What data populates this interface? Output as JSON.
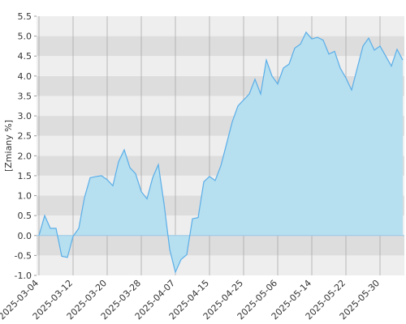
{
  "chart_data": {
    "type": "area",
    "y_label": "[Zmiany %]",
    "categories": [
      "2025-03-04",
      null,
      null,
      null,
      null,
      null,
      "2025-03-12",
      null,
      null,
      null,
      null,
      null,
      "2025-03-20",
      null,
      null,
      null,
      null,
      null,
      "2025-03-28",
      null,
      null,
      null,
      null,
      null,
      "2025-04-07",
      null,
      null,
      null,
      null,
      null,
      "2025-04-15",
      null,
      null,
      null,
      null,
      null,
      "2025-04-25",
      null,
      null,
      null,
      null,
      null,
      "2025-05-06",
      null,
      null,
      null,
      null,
      null,
      "2025-05-14",
      null,
      null,
      null,
      null,
      null,
      "2025-05-22",
      null,
      null,
      null,
      null,
      null,
      "2025-05-30",
      null,
      null,
      null,
      null
    ],
    "values": [
      0.0,
      0.5,
      0.18,
      0.18,
      -0.52,
      -0.55,
      -0.02,
      0.18,
      0.95,
      1.45,
      1.48,
      1.5,
      1.4,
      1.25,
      1.85,
      2.15,
      1.7,
      1.55,
      1.1,
      0.92,
      1.45,
      1.78,
      0.8,
      -0.35,
      -0.92,
      -0.6,
      -0.48,
      0.42,
      0.45,
      1.35,
      1.48,
      1.38,
      1.75,
      2.3,
      2.85,
      3.25,
      3.4,
      3.55,
      3.92,
      3.55,
      4.4,
      4.0,
      3.8,
      4.2,
      4.3,
      4.7,
      4.8,
      5.1,
      4.93,
      4.97,
      4.9,
      4.55,
      4.62,
      4.2,
      3.95,
      3.65,
      4.2,
      4.75,
      4.95,
      4.65,
      4.75,
      4.5,
      4.25,
      4.67,
      4.4
    ],
    "color": "#5aaee8",
    "fill": "#b6dff0",
    "ylim": [
      -1.0,
      5.5
    ],
    "yticks": [
      {
        "value": -1,
        "label": "-1.0"
      },
      -0.5,
      {
        "value": 0,
        "label": "0.0"
      },
      0.5,
      {
        "value": 1,
        "label": "1.0"
      },
      1.5,
      {
        "value": 2,
        "label": "2.0"
      },
      2.5,
      {
        "value": 3,
        "label": "3.0"
      },
      3.5,
      {
        "value": 4,
        "label": "4.0"
      },
      4.5,
      {
        "value": 5,
        "label": "5.0"
      },
      5.5
    ],
    "grid": true
  }
}
